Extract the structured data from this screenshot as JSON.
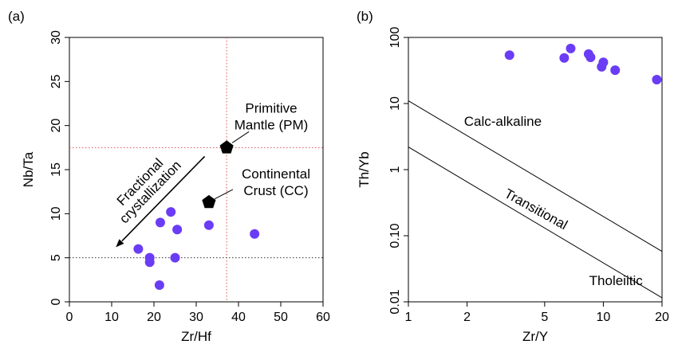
{
  "chart_data": [
    {
      "panel_label": "(a)",
      "type": "scatter",
      "xlabel": "Zr/Hf",
      "ylabel": "Nb/Ta",
      "xlim": [
        0,
        60
      ],
      "ylim": [
        0,
        30
      ],
      "xticks": [
        0,
        10,
        20,
        30,
        40,
        50,
        60
      ],
      "yticks": [
        0,
        5,
        10,
        15,
        20,
        25,
        30
      ],
      "grid": false,
      "point_color": "#6a3cf5",
      "points": [
        {
          "x": 16.3,
          "y": 6.0
        },
        {
          "x": 19.0,
          "y": 5.0
        },
        {
          "x": 19.0,
          "y": 4.5
        },
        {
          "x": 21.5,
          "y": 9.0
        },
        {
          "x": 21.3,
          "y": 1.9
        },
        {
          "x": 24.0,
          "y": 10.2
        },
        {
          "x": 25.5,
          "y": 8.2
        },
        {
          "x": 25.0,
          "y": 5.0
        },
        {
          "x": 33.0,
          "y": 8.7
        },
        {
          "x": 43.8,
          "y": 7.7
        }
      ],
      "reference_points": [
        {
          "name": "Primitive Mantle (PM)",
          "label_lines": [
            "Primitive",
            "Mantle (PM)"
          ],
          "x": 37.2,
          "y": 17.5,
          "marker": "pentagon"
        },
        {
          "name": "Continental Crust (CC)",
          "label_lines": [
            "Continental",
            "Crust (CC)"
          ],
          "x": 33.0,
          "y": 11.3,
          "marker": "pentagon"
        }
      ],
      "reference_lines": [
        {
          "orientation": "horizontal",
          "value": 17.5,
          "style": "dotted",
          "color": "#d9534f"
        },
        {
          "orientation": "vertical",
          "value": 37.2,
          "style": "dotted",
          "color": "#d9534f"
        },
        {
          "orientation": "horizontal",
          "value": 5,
          "style": "dotted",
          "color": "#333333"
        }
      ],
      "arrow": {
        "label_lines": [
          "Fractional",
          "crystallization"
        ],
        "from": [
          32,
          16.5
        ],
        "to": [
          11,
          6.2
        ]
      }
    },
    {
      "panel_label": "(b)",
      "type": "scatter",
      "xlabel": "Zr/Y",
      "ylabel": "Th/Yb",
      "xscale": "log",
      "yscale": "log",
      "xlim": [
        1,
        20
      ],
      "ylim": [
        0.01,
        100
      ],
      "xticks": [
        1,
        2,
        5,
        10,
        20
      ],
      "xtick_labels": [
        "1",
        "2",
        "5",
        "10",
        "20"
      ],
      "yticks": [
        0.01,
        0.1,
        1,
        10,
        100
      ],
      "ytick_labels": [
        "0.01",
        "0.10",
        "1",
        "10",
        "100"
      ],
      "grid": false,
      "point_color": "#6a3cf5",
      "points": [
        {
          "x": 3.3,
          "y": 54
        },
        {
          "x": 6.3,
          "y": 49
        },
        {
          "x": 6.8,
          "y": 68
        },
        {
          "x": 8.4,
          "y": 56
        },
        {
          "x": 8.6,
          "y": 50
        },
        {
          "x": 9.8,
          "y": 36
        },
        {
          "x": 10.0,
          "y": 42
        },
        {
          "x": 11.5,
          "y": 32
        },
        {
          "x": 18.8,
          "y": 23
        }
      ],
      "boundary_lines": [
        {
          "from": [
            1,
            11
          ],
          "to": [
            20,
            0.058
          ]
        },
        {
          "from": [
            1,
            2.2
          ],
          "to": [
            20,
            0.0115
          ]
        }
      ],
      "field_labels": [
        {
          "text": "Calc-alkaline",
          "x": 3.05,
          "y": 4.6,
          "rotation": 0
        },
        {
          "text": "Transitional",
          "x": 4.4,
          "y": 0.22,
          "rotation": 29
        },
        {
          "text": "Tholeiitic",
          "x": 11.6,
          "y": 0.018,
          "rotation": 0
        }
      ]
    }
  ]
}
